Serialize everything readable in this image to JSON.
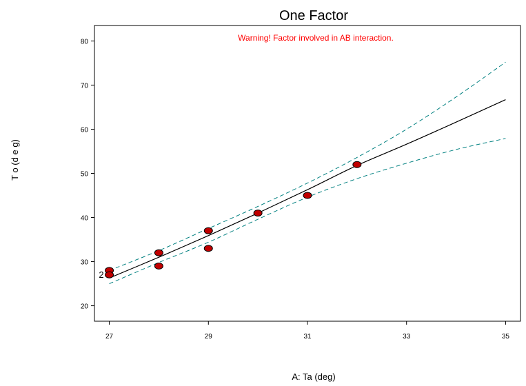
{
  "chart_data": {
    "type": "scatter",
    "title": "One Factor",
    "annotation": "Warning! Factor involved in AB interaction.",
    "xlabel": "A: Ta (deg)",
    "ylabel": "T o (d e g)",
    "xlim": [
      26.7,
      35.3
    ],
    "ylim": [
      16.5,
      83.5
    ],
    "xticks": [
      27,
      29,
      31,
      33,
      35
    ],
    "yticks": [
      20,
      30,
      40,
      50,
      60,
      70,
      80
    ],
    "points": [
      {
        "x": 27,
        "y": 28
      },
      {
        "x": 27,
        "y": 27
      },
      {
        "x": 28,
        "y": 32
      },
      {
        "x": 28,
        "y": 29
      },
      {
        "x": 29,
        "y": 37
      },
      {
        "x": 29,
        "y": 33
      },
      {
        "x": 30,
        "y": 41
      },
      {
        "x": 31,
        "y": 45
      },
      {
        "x": 32,
        "y": 52
      }
    ],
    "point_count_labels": [
      {
        "x": 27,
        "y": 27,
        "text": "2"
      }
    ],
    "fit_line": {
      "x": [
        27,
        28,
        29,
        30,
        31,
        32,
        33,
        34,
        35
      ],
      "y": [
        26.3,
        31.0,
        35.9,
        41.0,
        46.3,
        51.8,
        56.6,
        61.6,
        66.7
      ]
    },
    "upper_band": {
      "x": [
        27,
        28,
        29,
        30,
        31,
        32,
        33,
        34,
        35
      ],
      "y": [
        28.0,
        32.5,
        37.5,
        42.5,
        47.8,
        53.6,
        60.0,
        67.3,
        75.2
      ]
    },
    "lower_band": {
      "x": [
        27,
        28,
        29,
        30,
        31,
        32,
        33,
        34,
        35
      ],
      "y": [
        25.0,
        29.8,
        34.4,
        39.6,
        44.6,
        48.8,
        52.3,
        55.4,
        57.9
      ]
    },
    "colors": {
      "point_fill": "#c00000",
      "point_stroke": "#000000",
      "fit_line": "#000000",
      "band": "#008080",
      "annotation": "#ff0000"
    },
    "grid": false
  }
}
